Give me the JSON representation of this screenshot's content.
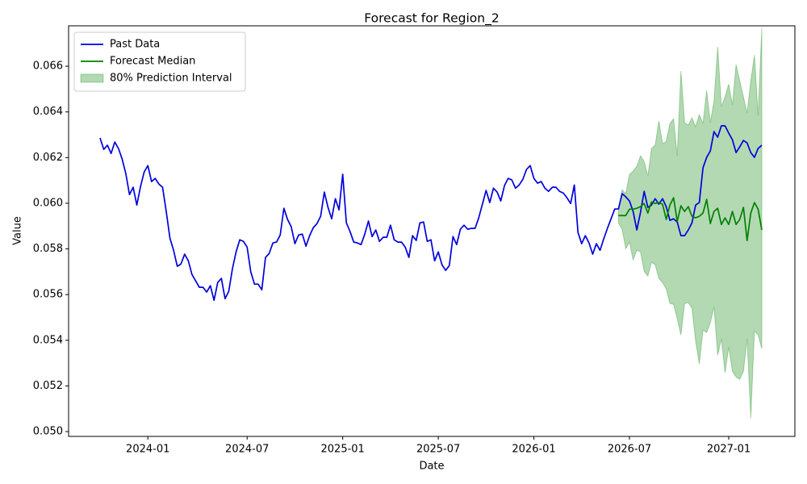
{
  "chart_data": {
    "type": "line",
    "title": "Forecast for Region_2",
    "x_label": "Date",
    "y_label": "Value",
    "categories": [
      null,
      null,
      null,
      null,
      null,
      null,
      null,
      null,
      null,
      null,
      null,
      null,
      null,
      "2024-01",
      null,
      null,
      null,
      null,
      null,
      null,
      null,
      null,
      null,
      null,
      null,
      null,
      null,
      null,
      null,
      null,
      null,
      null,
      null,
      null,
      null,
      null,
      null,
      null,
      null,
      null,
      "2024-07",
      null,
      null,
      null,
      null,
      null,
      null,
      null,
      null,
      null,
      null,
      null,
      null,
      null,
      null,
      null,
      null,
      null,
      null,
      null,
      null,
      null,
      null,
      null,
      null,
      null,
      "2025-01",
      null,
      null,
      null,
      null,
      null,
      null,
      null,
      null,
      null,
      null,
      null,
      null,
      null,
      null,
      null,
      null,
      null,
      null,
      null,
      null,
      null,
      null,
      null,
      null,
      null,
      "2025-07",
      null,
      null,
      null,
      null,
      null,
      null,
      null,
      null,
      null,
      null,
      null,
      null,
      null,
      null,
      null,
      null,
      null,
      null,
      null,
      null,
      null,
      null,
      null,
      null,
      null,
      "2026-01",
      null,
      null,
      null,
      null,
      null,
      null,
      null,
      null,
      null,
      null,
      null,
      null,
      null,
      null,
      null,
      null,
      null,
      null,
      null,
      null,
      null,
      null,
      null,
      null,
      null,
      "2026-07",
      null,
      null,
      null,
      null,
      null,
      null,
      null,
      null,
      null,
      null,
      null,
      null,
      null,
      null,
      null,
      null,
      null,
      null,
      null,
      null,
      null,
      null,
      null,
      null,
      null,
      null,
      "2027-01",
      null,
      null,
      null,
      null,
      null,
      null,
      null,
      null,
      null
    ],
    "ylim": [
      0.04979,
      0.06777
    ],
    "yticks": [
      {
        "value": 0.05,
        "label": "0.050"
      },
      0.052,
      0.054,
      0.056,
      0.058,
      {
        "value": 0.06,
        "label": "0.060"
      },
      0.062,
      0.064,
      0.066
    ],
    "legend": "upper left",
    "series": [
      {
        "name": "Past Data",
        "color": "#0000dd",
        "values": [
          0.06286,
          0.06236,
          0.06254,
          0.06218,
          0.06268,
          0.0624,
          0.06194,
          0.0613,
          0.06038,
          0.0607,
          0.05992,
          0.06073,
          0.06137,
          0.06165,
          0.06095,
          0.06109,
          0.06084,
          0.0607,
          0.05964,
          0.05847,
          0.05794,
          0.05724,
          0.05734,
          0.05777,
          0.05748,
          0.05688,
          0.0566,
          0.05632,
          0.05632,
          0.05611,
          0.05639,
          0.05575,
          0.05653,
          0.05671,
          0.05582,
          0.05614,
          0.05713,
          0.05787,
          0.0584,
          0.05833,
          0.05808,
          0.05699,
          0.05646,
          0.05646,
          0.05621,
          0.05763,
          0.0578,
          0.05826,
          0.0583,
          0.05861,
          0.05978,
          0.05929,
          0.05897,
          0.05823,
          0.05861,
          0.05865,
          0.05812,
          0.05858,
          0.05893,
          0.05911,
          0.05943,
          0.06049,
          0.05982,
          0.05932,
          0.0602,
          0.05971,
          0.06127,
          0.05914,
          0.05876,
          0.0583,
          0.05826,
          0.05819,
          0.05865,
          0.05922,
          0.05854,
          0.05883,
          0.05833,
          0.05851,
          0.05851,
          0.05904,
          0.0584,
          0.0583,
          0.0583,
          0.05808,
          0.05763,
          0.05858,
          0.05837,
          0.05914,
          0.05918,
          0.05833,
          0.0584,
          0.05748,
          0.05787,
          0.05731,
          0.05706,
          0.05727,
          0.05854,
          0.05819,
          0.05886,
          0.05904,
          0.05886,
          0.0589,
          0.0589,
          0.05936,
          0.05996,
          0.06056,
          0.06003,
          0.06066,
          0.06049,
          0.0601,
          0.06077,
          0.06109,
          0.06102,
          0.06066,
          0.0608,
          0.06105,
          0.06148,
          0.06165,
          0.06109,
          0.06088,
          0.06095,
          0.06066,
          0.06052,
          0.0607,
          0.0607,
          0.06052,
          0.06045,
          0.06024,
          0.05999,
          0.0608,
          0.05872,
          0.05823,
          0.05858,
          0.05826,
          0.05777,
          0.05823,
          0.05794,
          0.05844,
          0.0589,
          0.05932,
          0.05975,
          0.05975,
          0.06042,
          0.06028,
          0.0601,
          0.05964,
          0.05883,
          0.0596,
          0.06052,
          0.05982,
          0.05992,
          0.0602,
          0.05996,
          0.0602,
          0.05985,
          0.05925,
          0.05932,
          0.05918,
          0.05858,
          0.05858,
          0.05883,
          0.05914,
          0.05992,
          0.06003,
          0.06155,
          0.06201,
          0.06229,
          0.06314,
          0.06289,
          0.06339,
          0.06339,
          0.06307,
          0.06278,
          0.06222,
          0.06247,
          0.06275,
          0.06264,
          0.06222,
          0.06201,
          0.0624,
          0.06254
        ]
      },
      {
        "name": "Forecast Median",
        "color": "#008000",
        "values": [
          null,
          null,
          null,
          null,
          null,
          null,
          null,
          null,
          null,
          null,
          null,
          null,
          null,
          null,
          null,
          null,
          null,
          null,
          null,
          null,
          null,
          null,
          null,
          null,
          null,
          null,
          null,
          null,
          null,
          null,
          null,
          null,
          null,
          null,
          null,
          null,
          null,
          null,
          null,
          null,
          null,
          null,
          null,
          null,
          null,
          null,
          null,
          null,
          null,
          null,
          null,
          null,
          null,
          null,
          null,
          null,
          null,
          null,
          null,
          null,
          null,
          null,
          null,
          null,
          null,
          null,
          null,
          null,
          null,
          null,
          null,
          null,
          null,
          null,
          null,
          null,
          null,
          null,
          null,
          null,
          null,
          null,
          null,
          null,
          null,
          null,
          null,
          null,
          null,
          null,
          null,
          null,
          null,
          null,
          null,
          null,
          null,
          null,
          null,
          null,
          null,
          null,
          null,
          null,
          null,
          null,
          null,
          null,
          null,
          null,
          null,
          null,
          null,
          null,
          null,
          null,
          null,
          null,
          null,
          null,
          null,
          null,
          null,
          null,
          null,
          null,
          null,
          null,
          null,
          null,
          null,
          null,
          null,
          null,
          null,
          null,
          null,
          null,
          null,
          null,
          null,
          0.05946,
          0.05946,
          0.05946,
          0.05974,
          0.05974,
          0.05978,
          0.05985,
          0.05999,
          0.05957,
          0.06006,
          0.05999,
          0.06003,
          0.05996,
          0.05929,
          0.05992,
          0.06024,
          0.05921,
          0.05989,
          0.05964,
          0.05985,
          0.05943,
          0.05936,
          0.05943,
          0.05957,
          0.06017,
          0.05911,
          0.05964,
          0.05978,
          0.05907,
          0.05936,
          0.05907,
          0.05964,
          0.05907,
          0.05929,
          0.05982,
          0.05837,
          0.05957,
          0.06003,
          0.05974,
          0.05883
        ]
      },
      {
        "name": "80% Prediction Interval",
        "color": "#008000",
        "lower": [
          null,
          null,
          null,
          null,
          null,
          null,
          null,
          null,
          null,
          null,
          null,
          null,
          null,
          null,
          null,
          null,
          null,
          null,
          null,
          null,
          null,
          null,
          null,
          null,
          null,
          null,
          null,
          null,
          null,
          null,
          null,
          null,
          null,
          null,
          null,
          null,
          null,
          null,
          null,
          null,
          null,
          null,
          null,
          null,
          null,
          null,
          null,
          null,
          null,
          null,
          null,
          null,
          null,
          null,
          null,
          null,
          null,
          null,
          null,
          null,
          null,
          null,
          null,
          null,
          null,
          null,
          null,
          null,
          null,
          null,
          null,
          null,
          null,
          null,
          null,
          null,
          null,
          null,
          null,
          null,
          null,
          null,
          null,
          null,
          null,
          null,
          null,
          null,
          null,
          null,
          null,
          null,
          null,
          null,
          null,
          null,
          null,
          null,
          null,
          null,
          null,
          null,
          null,
          null,
          null,
          null,
          null,
          null,
          null,
          null,
          null,
          null,
          null,
          null,
          null,
          null,
          null,
          null,
          null,
          null,
          null,
          null,
          null,
          null,
          null,
          null,
          null,
          null,
          null,
          null,
          null,
          null,
          null,
          null,
          null,
          null,
          null,
          null,
          null,
          null,
          null,
          0.05914,
          0.05886,
          0.05801,
          0.0583,
          0.05752,
          0.05794,
          0.05787,
          0.05702,
          0.05681,
          0.05741,
          0.05731,
          0.05671,
          0.05653,
          0.05625,
          0.05561,
          0.05557,
          0.05494,
          0.05423,
          0.05561,
          0.05565,
          0.0554,
          0.05395,
          0.05296,
          0.05444,
          0.05434,
          0.05476,
          0.05547,
          0.05335,
          0.05406,
          0.05257,
          0.0537,
          0.05264,
          0.05239,
          0.05229,
          0.05264,
          0.05406,
          0.05059,
          0.05441,
          0.05423,
          0.05363
        ],
        "upper": [
          null,
          null,
          null,
          null,
          null,
          null,
          null,
          null,
          null,
          null,
          null,
          null,
          null,
          null,
          null,
          null,
          null,
          null,
          null,
          null,
          null,
          null,
          null,
          null,
          null,
          null,
          null,
          null,
          null,
          null,
          null,
          null,
          null,
          null,
          null,
          null,
          null,
          null,
          null,
          null,
          null,
          null,
          null,
          null,
          null,
          null,
          null,
          null,
          null,
          null,
          null,
          null,
          null,
          null,
          null,
          null,
          null,
          null,
          null,
          null,
          null,
          null,
          null,
          null,
          null,
          null,
          null,
          null,
          null,
          null,
          null,
          null,
          null,
          null,
          null,
          null,
          null,
          null,
          null,
          null,
          null,
          null,
          null,
          null,
          null,
          null,
          null,
          null,
          null,
          null,
          null,
          null,
          null,
          null,
          null,
          null,
          null,
          null,
          null,
          null,
          null,
          null,
          null,
          null,
          null,
          null,
          null,
          null,
          null,
          null,
          null,
          null,
          null,
          null,
          null,
          null,
          null,
          null,
          null,
          null,
          null,
          null,
          null,
          null,
          null,
          null,
          null,
          null,
          null,
          null,
          null,
          null,
          null,
          null,
          null,
          null,
          null,
          null,
          null,
          null,
          null,
          0.05964,
          0.06059,
          0.06042,
          0.06126,
          0.06141,
          0.06162,
          0.06208,
          0.06183,
          0.06119,
          0.0624,
          0.06254,
          0.0636,
          0.06261,
          0.06271,
          0.06349,
          0.0637,
          0.06208,
          0.06579,
          0.06353,
          0.06342,
          0.06374,
          0.06335,
          0.06388,
          0.06349,
          0.06494,
          0.06353,
          0.06448,
          0.06685,
          0.06423,
          0.06466,
          0.06522,
          0.0643,
          0.06607,
          0.06536,
          0.06466,
          0.06395,
          0.06536,
          0.06649,
          0.06384,
          0.06767
        ]
      }
    ]
  }
}
